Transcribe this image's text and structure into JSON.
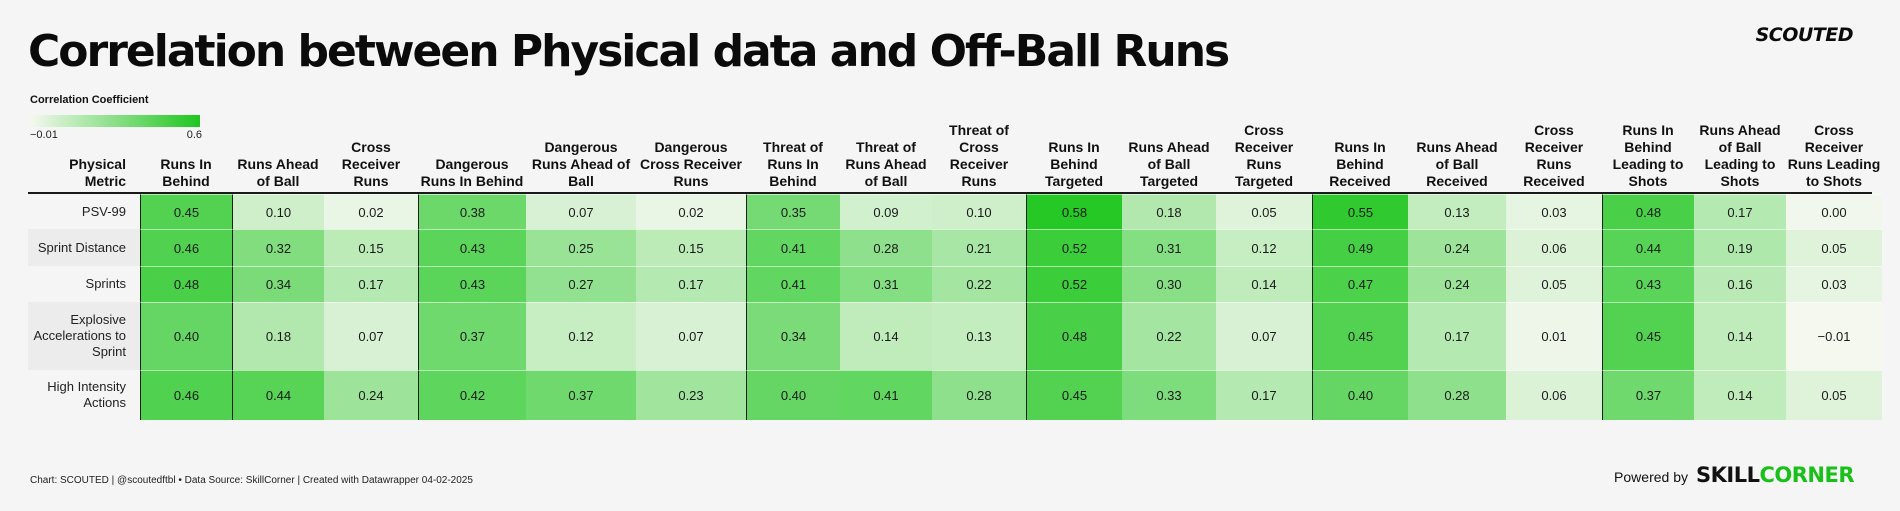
{
  "header": {
    "title": "Correlation between Physical data and Off-Ball Runs",
    "brand": "SCOUTED"
  },
  "legend": {
    "title": "Correlation Coefficient",
    "min_label": "−0.01",
    "max_label": "0.6"
  },
  "colors": {
    "low": "#f4f8ef",
    "high": "#1fc61f",
    "background": "#f5f5f5",
    "brand_green": "#19c019"
  },
  "chart_data": {
    "type": "heatmap",
    "title": "Correlation between Physical data and Off-Ball Runs",
    "value_range": [
      -0.01,
      0.6
    ],
    "row_header": "Physical Metric",
    "columns": [
      "Runs In Behind",
      "Runs Ahead of Ball",
      "Cross Receiver Runs",
      "Dangerous Runs In Behind",
      "Dangerous Runs Ahead of Ball",
      "Dangerous Cross Receiver Runs",
      "Threat of Runs In Behind",
      "Threat of Runs Ahead of Ball",
      "Threat of Cross Receiver Runs",
      "Runs In Behind Targeted",
      "Runs Ahead of Ball Targeted",
      "Cross Receiver Runs Targeted",
      "Runs In Behind Received",
      "Runs Ahead of Ball Received",
      "Cross Receiver Runs Received",
      "Runs In Behind Leading to Shots",
      "Runs Ahead of Ball Leading to Shots",
      "Cross Receiver Runs Leading to Shots"
    ],
    "rows": [
      {
        "label": "PSV-99",
        "values": [
          "0.45",
          "0.10",
          "0.02",
          "0.38",
          "0.07",
          "0.02",
          "0.35",
          "0.09",
          "0.10",
          "0.58",
          "0.18",
          "0.05",
          "0.55",
          "0.13",
          "0.03",
          "0.48",
          "0.17",
          "0.00"
        ]
      },
      {
        "label": "Sprint Distance",
        "values": [
          "0.46",
          "0.32",
          "0.15",
          "0.43",
          "0.25",
          "0.15",
          "0.41",
          "0.28",
          "0.21",
          "0.52",
          "0.31",
          "0.12",
          "0.49",
          "0.24",
          "0.06",
          "0.44",
          "0.19",
          "0.05"
        ]
      },
      {
        "label": "Sprints",
        "values": [
          "0.48",
          "0.34",
          "0.17",
          "0.43",
          "0.27",
          "0.17",
          "0.41",
          "0.31",
          "0.22",
          "0.52",
          "0.30",
          "0.14",
          "0.47",
          "0.24",
          "0.05",
          "0.43",
          "0.16",
          "0.03"
        ]
      },
      {
        "label": "Explosive Accelerations to Sprint",
        "values": [
          "0.40",
          "0.18",
          "0.07",
          "0.37",
          "0.12",
          "0.07",
          "0.34",
          "0.14",
          "0.13",
          "0.48",
          "0.22",
          "0.07",
          "0.45",
          "0.17",
          "0.01",
          "0.45",
          "0.14",
          "−0.01"
        ]
      },
      {
        "label": "High Intensity Actions",
        "values": [
          "0.46",
          "0.44",
          "0.24",
          "0.42",
          "0.37",
          "0.23",
          "0.40",
          "0.41",
          "0.28",
          "0.45",
          "0.33",
          "0.17",
          "0.40",
          "0.28",
          "0.06",
          "0.37",
          "0.14",
          "0.05"
        ]
      }
    ]
  },
  "footer": {
    "credit": "Chart: SCOUTED | @scoutedftbl • Data Source: SkillCorner | Created with Datawrapper 04-02-2025",
    "powered_by": "Powered by",
    "partner_a": "SKILL",
    "partner_b": "CORNER"
  }
}
